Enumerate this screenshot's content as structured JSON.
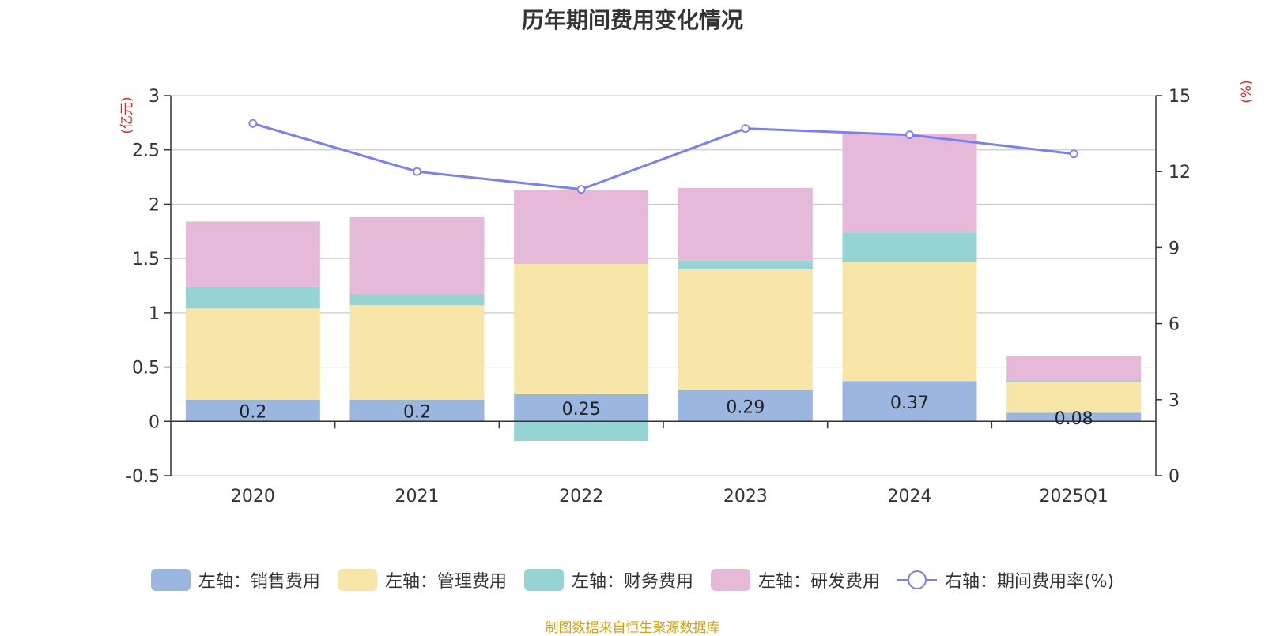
{
  "chart_data": {
    "type": "bar",
    "stacked": true,
    "title": "历年期间费用变化情况",
    "categories": [
      "2020",
      "2021",
      "2022",
      "2023",
      "2024",
      "2025Q1"
    ],
    "left_axis": {
      "unit_label": "(亿元)",
      "ylim": [
        -0.5,
        3
      ],
      "ticks": [
        -0.5,
        0,
        0.5,
        1,
        1.5,
        2,
        2.5,
        3
      ],
      "tick_labels": [
        "-0.5",
        "0",
        "0.5",
        "1",
        "1.5",
        "2",
        "2.5",
        "3"
      ]
    },
    "right_axis": {
      "unit_label": "(%)",
      "ylim": [
        0,
        15
      ],
      "ticks": [
        0,
        3,
        6,
        9,
        12,
        15
      ],
      "tick_labels": [
        "0",
        "3",
        "6",
        "9",
        "12",
        "15"
      ]
    },
    "series": [
      {
        "name": "左轴：销售费用",
        "axis": "left",
        "color": "#9bb7e0",
        "values": [
          0.2,
          0.2,
          0.25,
          0.29,
          0.37,
          0.08
        ],
        "data_labels": [
          "0.2",
          "0.2",
          "0.25",
          "0.29",
          "0.37",
          "0.08"
        ]
      },
      {
        "name": "左轴：管理费用",
        "axis": "left",
        "color": "#f8e6a8",
        "values": [
          0.84,
          0.87,
          1.2,
          1.11,
          1.1,
          0.28
        ]
      },
      {
        "name": "左轴：财务费用",
        "axis": "left",
        "color": "#96d4d4",
        "values": [
          0.2,
          0.1,
          -0.18,
          0.08,
          0.27,
          0.02
        ]
      },
      {
        "name": "左轴：研发费用",
        "axis": "left",
        "color": "#e7b9d9",
        "values": [
          0.6,
          0.71,
          0.68,
          0.67,
          0.91,
          0.22
        ]
      }
    ],
    "line_series": {
      "name": "右轴：期间费用率(%)",
      "axis": "right",
      "color": "#7b7ff0",
      "values": [
        13.9,
        12.0,
        11.3,
        13.7,
        13.45,
        12.7
      ]
    },
    "source_note": "制图数据来自恒生聚源数据库"
  },
  "colors": {
    "axis_unit": "#e8222a",
    "grid": "#cccccc",
    "axis_text": "#333333",
    "source": "#d4a017"
  }
}
